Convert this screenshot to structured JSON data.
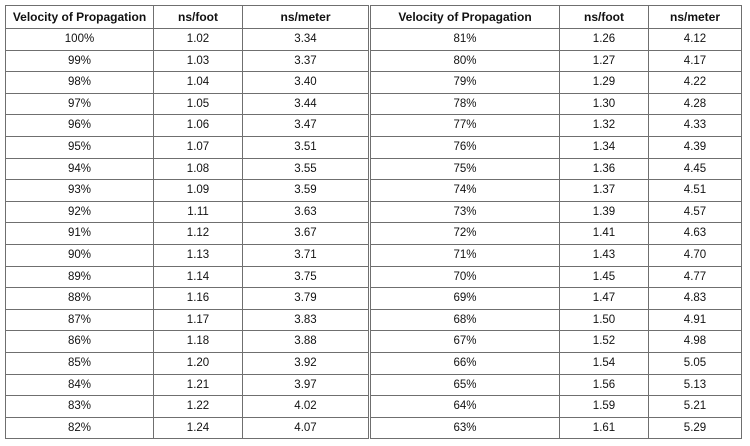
{
  "headers": [
    "Velocity of Propagation",
    "ns/foot",
    "ns/meter",
    "Velocity of Propagation",
    "ns/foot",
    "ns/meter"
  ],
  "rows": [
    [
      "100%",
      "1.02",
      "3.34",
      "81%",
      "1.26",
      "4.12"
    ],
    [
      "99%",
      "1.03",
      "3.37",
      "80%",
      "1.27",
      "4.17"
    ],
    [
      "98%",
      "1.04",
      "3.40",
      "79%",
      "1.29",
      "4.22"
    ],
    [
      "97%",
      "1.05",
      "3.44",
      "78%",
      "1.30",
      "4.28"
    ],
    [
      "96%",
      "1.06",
      "3.47",
      "77%",
      "1.32",
      "4.33"
    ],
    [
      "95%",
      "1.07",
      "3.51",
      "76%",
      "1.34",
      "4.39"
    ],
    [
      "94%",
      "1.08",
      "3.55",
      "75%",
      "1.36",
      "4.45"
    ],
    [
      "93%",
      "1.09",
      "3.59",
      "74%",
      "1.37",
      "4.51"
    ],
    [
      "92%",
      "1.11",
      "3.63",
      "73%",
      "1.39",
      "4.57"
    ],
    [
      "91%",
      "1.12",
      "3.67",
      "72%",
      "1.41",
      "4.63"
    ],
    [
      "90%",
      "1.13",
      "3.71",
      "71%",
      "1.43",
      "4.70"
    ],
    [
      "89%",
      "1.14",
      "3.75",
      "70%",
      "1.45",
      "4.77"
    ],
    [
      "88%",
      "1.16",
      "3.79",
      "69%",
      "1.47",
      "4.83"
    ],
    [
      "87%",
      "1.17",
      "3.83",
      "68%",
      "1.50",
      "4.91"
    ],
    [
      "86%",
      "1.18",
      "3.88",
      "67%",
      "1.52",
      "4.98"
    ],
    [
      "85%",
      "1.20",
      "3.92",
      "66%",
      "1.54",
      "5.05"
    ],
    [
      "84%",
      "1.21",
      "3.97",
      "65%",
      "1.56",
      "5.13"
    ],
    [
      "83%",
      "1.22",
      "4.02",
      "64%",
      "1.59",
      "5.21"
    ],
    [
      "82%",
      "1.24",
      "4.07",
      "63%",
      "1.61",
      "5.29"
    ]
  ]
}
